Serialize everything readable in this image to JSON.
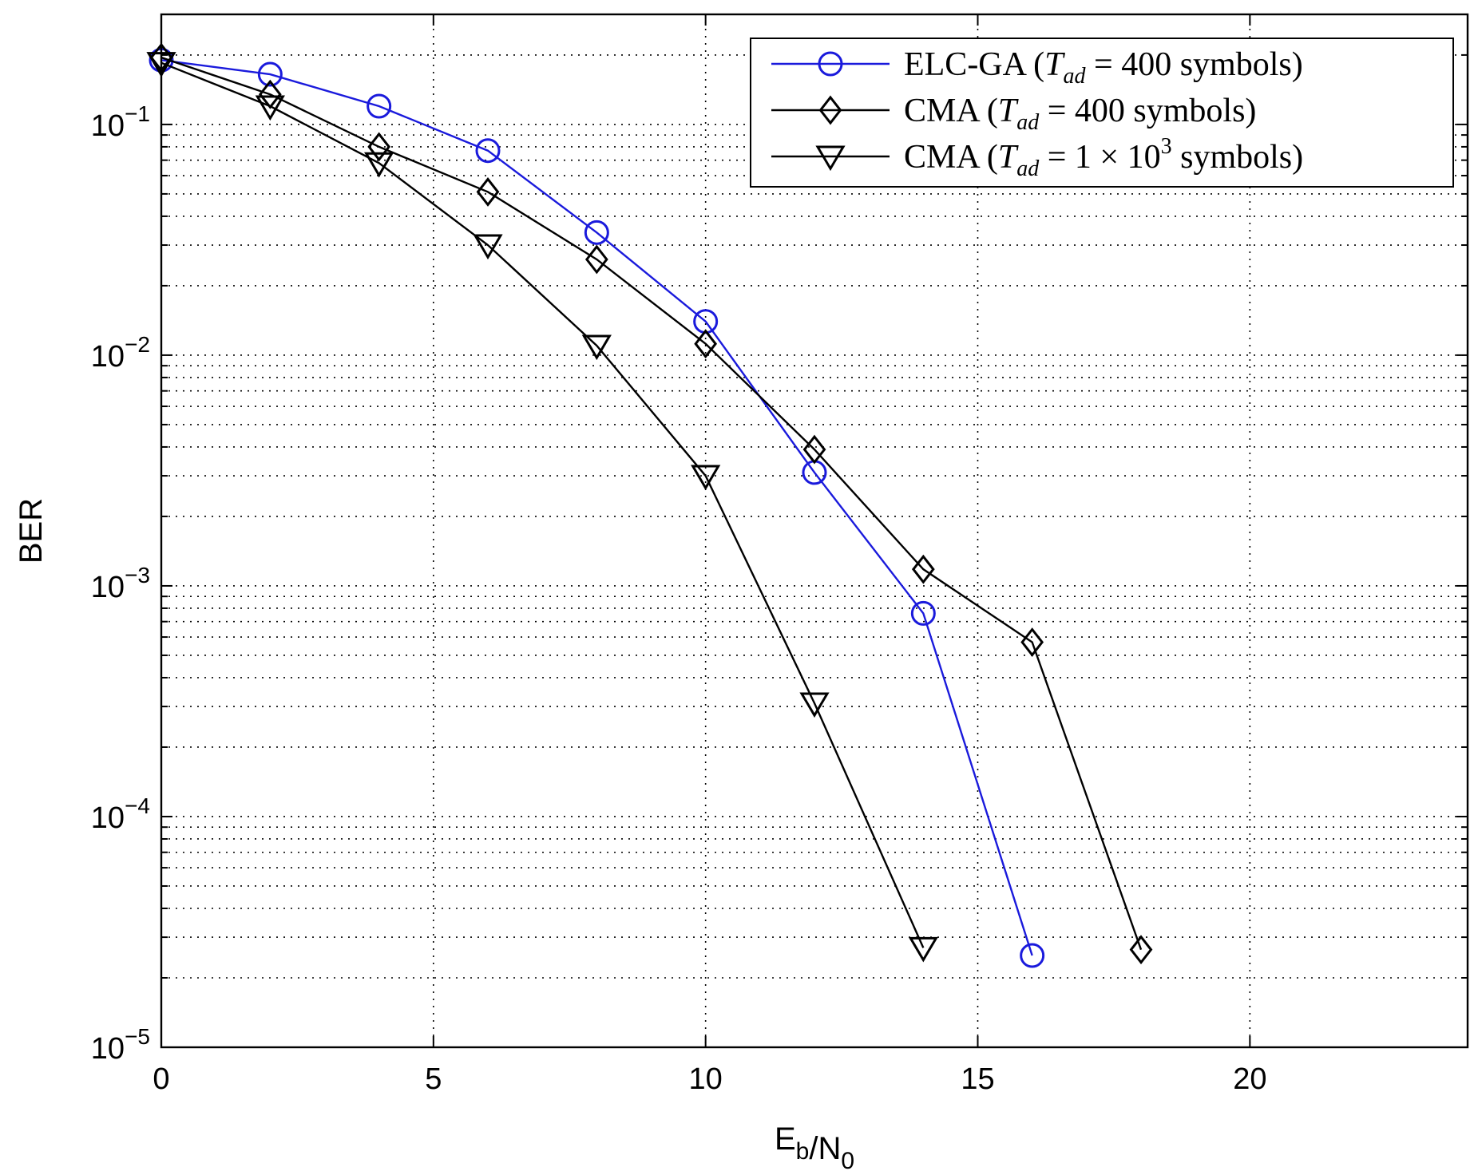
{
  "chart_data": {
    "type": "line",
    "xlabel": "E_b/N_0",
    "ylabel": "BER",
    "xlim": [
      0,
      24
    ],
    "ylim": [
      1e-05,
      0.3
    ],
    "yscale": "log",
    "grid": true,
    "legend_position": "top-right",
    "x_ticks": [
      "0",
      "5",
      "10",
      "15",
      "20"
    ],
    "y_ticks": [
      {
        "base": "10",
        "exp": "-1"
      },
      {
        "base": "10",
        "exp": "-2"
      },
      {
        "base": "10",
        "exp": "-3"
      },
      {
        "base": "10",
        "exp": "-4"
      },
      {
        "base": "10",
        "exp": "-5"
      }
    ],
    "series": [
      {
        "name": "ELC-GA (T_ad = 400 symbols)",
        "legend": {
          "prefix": "ELC-GA (",
          "T": "T",
          "sub": "ad",
          "mid": " = 400 symbols)",
          "sup": "",
          "tail": ""
        },
        "color": "#1a1adc",
        "marker": "circle",
        "x": [
          0,
          2,
          4,
          6,
          8,
          10,
          12,
          14,
          16
        ],
        "y": [
          0.19,
          0.165,
          0.12,
          0.077,
          0.034,
          0.014,
          0.0031,
          0.00076,
          2.5e-05
        ]
      },
      {
        "name": "CMA (T_ad = 400 symbols)",
        "legend": {
          "prefix": "CMA (",
          "T": "T",
          "sub": "ad",
          "mid": " = 400 symbols)",
          "sup": "",
          "tail": ""
        },
        "color": "#000000",
        "marker": "diamond",
        "x": [
          0,
          2,
          4,
          6,
          8,
          10,
          12,
          14,
          16,
          18
        ],
        "y": [
          0.195,
          0.135,
          0.08,
          0.051,
          0.026,
          0.0112,
          0.0039,
          0.00118,
          0.00057,
          2.65e-05
        ]
      },
      {
        "name": "CMA (T_ad = 1 × 10^3 symbols)",
        "legend": {
          "prefix": "CMA (",
          "T": "T",
          "sub": "ad",
          "mid": " = 1 × 10",
          "sup": "3",
          "tail": " symbols)"
        },
        "color": "#000000",
        "marker": "triangle-down",
        "x": [
          0,
          2,
          4,
          6,
          8,
          10,
          12,
          14
        ],
        "y": [
          0.185,
          0.12,
          0.068,
          0.03,
          0.011,
          0.003,
          0.00031,
          2.7e-05
        ]
      }
    ]
  }
}
